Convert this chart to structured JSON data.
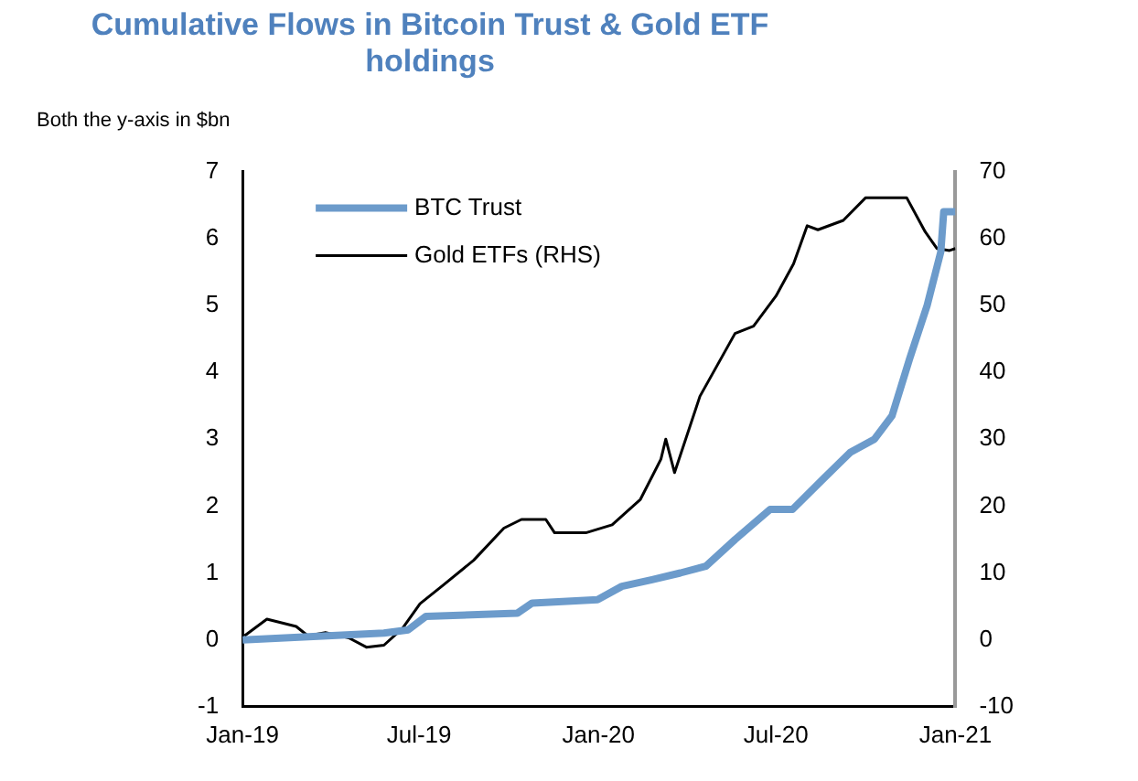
{
  "chart_data": {
    "type": "line",
    "title": "Cumulative Flows in Bitcoin Trust & Gold ETF holdings",
    "subtitle": "Both the y-axis in $bn",
    "xlim": [
      "2019-01-01",
      "2021-01-01"
    ],
    "xticks": [
      {
        "value": "2019-01-01",
        "label": "Jan-19"
      },
      {
        "value": "2019-07-01",
        "label": "Jul-19"
      },
      {
        "value": "2020-01-01",
        "label": "Jan-20"
      },
      {
        "value": "2020-07-01",
        "label": "Jul-20"
      },
      {
        "value": "2021-01-01",
        "label": "Jan-21"
      }
    ],
    "ylim": [
      -1,
      7
    ],
    "yticks": [
      -1,
      0,
      1,
      2,
      3,
      4,
      5,
      6,
      7
    ],
    "y2lim": [
      -10,
      70
    ],
    "y2ticks": [
      -10,
      0,
      10,
      20,
      30,
      40,
      50,
      60,
      70
    ],
    "grid": false,
    "legend": "top left",
    "marker": "none",
    "series": [
      {
        "name": "BTC Trust",
        "color": "#6c9bcb",
        "x": [
          "2019-01-01",
          "2019-05-26",
          "2019-06-20",
          "2019-07-08",
          "2019-10-10",
          "2019-10-25",
          "2019-12-31",
          "2020-01-25",
          "2020-02-25",
          "2020-03-25",
          "2020-04-20",
          "2020-05-20",
          "2020-06-25",
          "2020-07-18",
          "2020-08-18",
          "2020-09-15",
          "2020-10-10",
          "2020-10-28",
          "2020-11-15",
          "2020-12-03",
          "2020-12-17",
          "2020-12-20",
          "2021-01-01"
        ],
        "values": [
          0,
          0.1,
          0.15,
          0.35,
          0.4,
          0.55,
          0.6,
          0.8,
          0.9,
          1.0,
          1.1,
          1.5,
          1.95,
          1.95,
          2.4,
          2.8,
          3.0,
          3.35,
          4.2,
          5.0,
          5.8,
          6.4,
          6.4
        ]
      },
      {
        "name": "Gold ETFs (RHS)",
        "color": "#000000",
        "axis": "y2",
        "x": [
          "2019-01-03",
          "2019-01-26",
          "2019-02-25",
          "2019-03-09",
          "2019-03-27",
          "2019-04-20",
          "2019-05-08",
          "2019-05-26",
          "2019-06-14",
          "2019-07-02",
          "2019-07-26",
          "2019-08-26",
          "2019-09-26",
          "2019-10-14",
          "2019-11-08",
          "2019-11-17",
          "2019-12-19",
          "2020-01-15",
          "2020-02-13",
          "2020-03-05",
          "2020-03-10",
          "2020-03-19",
          "2020-04-14",
          "2020-05-20",
          "2020-06-08",
          "2020-07-01",
          "2020-07-19",
          "2020-08-02",
          "2020-08-13",
          "2020-09-08",
          "2020-10-01",
          "2020-11-12",
          "2020-12-01",
          "2020-12-13",
          "2020-12-26",
          "2021-01-01"
        ],
        "values": [
          0.6,
          3.1,
          2,
          0.6,
          1.1,
          0.3,
          -1.1,
          -0.8,
          1.7,
          5.4,
          8.2,
          11.9,
          16.7,
          18,
          18,
          16,
          16,
          17.2,
          21,
          27,
          30,
          25,
          36.4,
          45.8,
          46.9,
          51.4,
          56.2,
          61.9,
          61.3,
          62.7,
          66.1,
          66.1,
          61,
          58.5,
          58.2,
          58.5
        ]
      }
    ]
  }
}
